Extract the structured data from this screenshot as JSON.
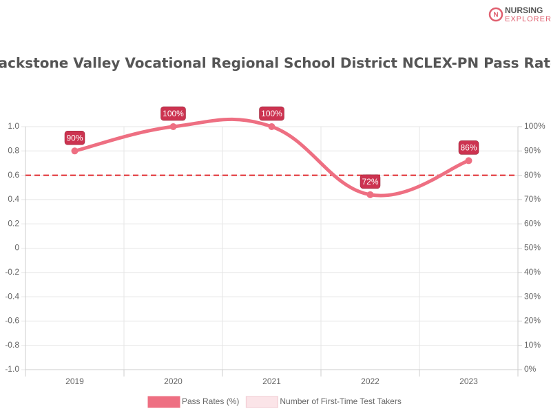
{
  "logo": {
    "line1": "NURSING",
    "line2": "EXPLORER"
  },
  "chart_data": {
    "type": "line",
    "title": "Blackstone Valley Vocational Regional School District NCLEX-PN Pass Rates",
    "categories": [
      "2019",
      "2020",
      "2021",
      "2022",
      "2023"
    ],
    "series": [
      {
        "name": "Pass Rates (%)",
        "color": "#ee6f82",
        "axis": "y2",
        "values": [
          90,
          100,
          100,
          72,
          86
        ],
        "value_labels": [
          "90%",
          "100%",
          "100%",
          "72%",
          "86%"
        ],
        "label_color": "#cc3350"
      },
      {
        "name": "Number of First-Time Test Takers",
        "color": "#fbe4e8",
        "values": [
          null,
          null,
          null,
          null,
          null
        ]
      }
    ],
    "ylim": [
      -1,
      1
    ],
    "yticks": [
      {
        "value": 1,
        "label": "1.0"
      },
      0.8,
      0.6,
      0.4,
      0.2,
      0,
      -0.2,
      -0.4,
      -0.6,
      -0.8,
      {
        "value": -1,
        "label": "-1.0"
      }
    ],
    "y2lim": [
      0,
      100
    ],
    "y2ticks": [
      {
        "value": 100,
        "label": "100%"
      },
      {
        "value": 90,
        "label": "90%"
      },
      {
        "value": 80,
        "label": "80%"
      },
      {
        "value": 70,
        "label": "70%"
      },
      {
        "value": 60,
        "label": "60%"
      },
      {
        "value": 50,
        "label": "50%"
      },
      {
        "value": 40,
        "label": "40%"
      },
      {
        "value": 30,
        "label": "30%"
      },
      {
        "value": 20,
        "label": "20%"
      },
      {
        "value": 10,
        "label": "10%"
      },
      {
        "value": 0,
        "label": "0%"
      }
    ],
    "reference_line": {
      "value": 80,
      "axis": "y2",
      "color": "#e0292e"
    },
    "grid": true
  }
}
